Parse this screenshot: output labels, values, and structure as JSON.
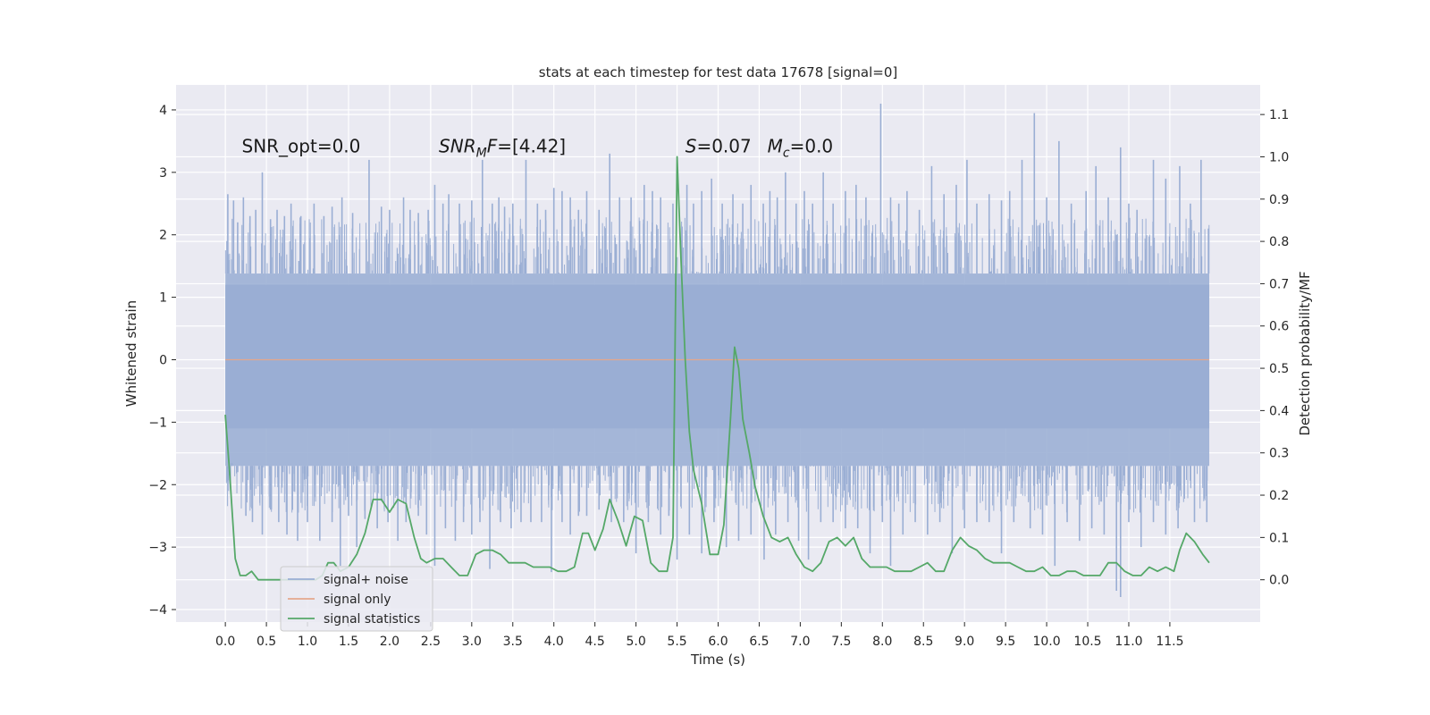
{
  "chart_data": {
    "type": "line",
    "title": "stats at each timestep for test data 17678 [signal=0]",
    "xlabel": "Time (s)",
    "ylabel": "Whitened strain",
    "y2label": "Detection probability/MF",
    "xlim": [
      -0.6,
      12.6
    ],
    "ylim": [
      -4.2,
      4.4
    ],
    "y2lim": [
      -0.1,
      1.17
    ],
    "xticks": [
      0.0,
      0.5,
      1.0,
      1.5,
      2.0,
      2.5,
      3.0,
      3.5,
      4.0,
      4.5,
      5.0,
      5.5,
      6.0,
      6.5,
      7.0,
      7.5,
      8.0,
      8.5,
      9.0,
      9.5,
      10.0,
      10.5,
      11.0,
      11.5
    ],
    "xtick_labels": [
      "0.0",
      "0.5",
      "1.0",
      "1.5",
      "2.0",
      "2.5",
      "3.0",
      "3.5",
      "4.0",
      "4.5",
      "5.0",
      "5.5",
      "6.0",
      "6.5",
      "7.0",
      "7.5",
      "8.0",
      "8.5",
      "9.0",
      "9.5",
      "10.0",
      "10.5",
      "11.0",
      "11.5"
    ],
    "yticks": [
      -4,
      -3,
      -2,
      -1,
      0,
      1,
      2,
      3,
      4
    ],
    "ytick_labels": [
      "−4",
      "−3",
      "−2",
      "−1",
      "0",
      "1",
      "2",
      "3",
      "4"
    ],
    "y2ticks": [
      0.0,
      0.1,
      0.2,
      0.3,
      0.4,
      0.5,
      0.6,
      0.7,
      0.8,
      0.9,
      1.0,
      1.1
    ],
    "y2tick_labels": [
      "0.0",
      "0.1",
      "0.2",
      "0.3",
      "0.4",
      "0.5",
      "0.6",
      "0.7",
      "0.8",
      "0.9",
      "1.0",
      "1.1"
    ],
    "grid": true,
    "legend_position": "lower-left",
    "annotations": [
      {
        "id": "snr-opt",
        "parts": [
          {
            "text": "SNR_opt=0.0",
            "style": "normal"
          }
        ],
        "x": 0.2,
        "y": 3.32
      },
      {
        "id": "snr-mf",
        "parts": [
          {
            "text": "SNR",
            "style": "italic"
          },
          {
            "text": "M",
            "style": "italic-sub"
          },
          {
            "text": "F",
            "style": "italic"
          },
          {
            "text": "=[4.42]",
            "style": "normal"
          }
        ],
        "x": 2.6,
        "y": 3.32
      },
      {
        "id": "s-stat",
        "parts": [
          {
            "text": "S",
            "style": "italic"
          },
          {
            "text": "=0.07",
            "style": "normal"
          }
        ],
        "x": 5.6,
        "y": 3.32
      },
      {
        "id": "mc",
        "parts": [
          {
            "text": "M",
            "style": "italic"
          },
          {
            "text": "c",
            "style": "italic-sub"
          },
          {
            "text": "=0.0",
            "style": "normal"
          }
        ],
        "x": 6.6,
        "y": 3.32
      }
    ],
    "series": [
      {
        "name": "signal+ noise",
        "axis": "left",
        "color": "#9aaed4",
        "x_range": [
          0.0,
          11.98
        ],
        "band_typical": [
          -1.7,
          1.38
        ],
        "band_dense": [
          -1.1,
          1.2
        ],
        "spikes": [
          [
            0.02,
            1.9
          ],
          [
            0.03,
            2.65
          ],
          [
            0.1,
            2.55
          ],
          [
            0.15,
            2.2
          ],
          [
            0.22,
            2.6
          ],
          [
            0.3,
            2.3
          ],
          [
            0.37,
            2.4
          ],
          [
            0.45,
            3.0
          ],
          [
            0.55,
            2.25
          ],
          [
            0.63,
            2.4
          ],
          [
            0.72,
            2.3
          ],
          [
            0.8,
            2.5
          ],
          [
            0.92,
            2.3
          ],
          [
            1.08,
            2.5
          ],
          [
            1.2,
            2.3
          ],
          [
            1.3,
            2.45
          ],
          [
            1.42,
            2.6
          ],
          [
            1.55,
            2.35
          ],
          [
            1.75,
            3.2
          ],
          [
            1.9,
            2.45
          ],
          [
            2.0,
            2.4
          ],
          [
            2.17,
            2.6
          ],
          [
            2.25,
            2.4
          ],
          [
            2.35,
            2.35
          ],
          [
            2.47,
            2.4
          ],
          [
            2.55,
            2.8
          ],
          [
            2.65,
            2.5
          ],
          [
            2.72,
            2.65
          ],
          [
            2.85,
            2.5
          ],
          [
            3.0,
            2.55
          ],
          [
            3.13,
            3.2
          ],
          [
            3.25,
            2.5
          ],
          [
            3.33,
            2.6
          ],
          [
            3.4,
            2.45
          ],
          [
            3.5,
            2.5
          ],
          [
            3.66,
            3.2
          ],
          [
            3.8,
            2.5
          ],
          [
            3.9,
            2.4
          ],
          [
            4.0,
            2.75
          ],
          [
            4.1,
            2.7
          ],
          [
            4.2,
            2.6
          ],
          [
            4.3,
            2.4
          ],
          [
            4.4,
            2.7
          ],
          [
            4.55,
            2.4
          ],
          [
            4.68,
            3.3
          ],
          [
            4.8,
            2.6
          ],
          [
            4.94,
            2.6
          ],
          [
            5.1,
            2.8
          ],
          [
            5.2,
            2.7
          ],
          [
            5.3,
            2.6
          ],
          [
            5.45,
            2.5
          ],
          [
            5.62,
            2.8
          ],
          [
            5.7,
            2.5
          ],
          [
            5.8,
            2.7
          ],
          [
            5.92,
            2.9
          ],
          [
            6.05,
            2.5
          ],
          [
            6.18,
            2.65
          ],
          [
            6.3,
            2.5
          ],
          [
            6.4,
            2.8
          ],
          [
            6.55,
            2.5
          ],
          [
            6.63,
            2.7
          ],
          [
            6.72,
            2.6
          ],
          [
            6.82,
            3.0
          ],
          [
            6.95,
            2.5
          ],
          [
            7.05,
            2.7
          ],
          [
            7.15,
            2.5
          ],
          [
            7.28,
            3.0
          ],
          [
            7.4,
            2.5
          ],
          [
            7.55,
            2.7
          ],
          [
            7.68,
            2.8
          ],
          [
            7.8,
            2.6
          ],
          [
            7.98,
            4.1
          ],
          [
            8.1,
            2.6
          ],
          [
            8.2,
            2.5
          ],
          [
            8.3,
            2.7
          ],
          [
            8.45,
            2.4
          ],
          [
            8.6,
            3.1
          ],
          [
            8.75,
            2.65
          ],
          [
            8.9,
            2.8
          ],
          [
            9.03,
            3.2
          ],
          [
            9.15,
            2.5
          ],
          [
            9.3,
            2.65
          ],
          [
            9.45,
            2.55
          ],
          [
            9.55,
            2.7
          ],
          [
            9.7,
            3.2
          ],
          [
            9.85,
            3.95
          ],
          [
            10.0,
            2.6
          ],
          [
            10.15,
            3.5
          ],
          [
            10.3,
            2.5
          ],
          [
            10.48,
            2.7
          ],
          [
            10.6,
            3.1
          ],
          [
            10.75,
            2.6
          ],
          [
            10.9,
            3.4
          ],
          [
            11.0,
            2.5
          ],
          [
            11.1,
            2.4
          ],
          [
            11.3,
            3.2
          ],
          [
            11.45,
            2.9
          ],
          [
            11.62,
            3.1
          ],
          [
            11.75,
            2.5
          ],
          [
            11.88,
            3.2
          ],
          [
            11.97,
            2.1
          ],
          [
            0.05,
            -1.85
          ],
          [
            0.08,
            -1.65
          ],
          [
            0.15,
            -1.8
          ],
          [
            0.25,
            -2.5
          ],
          [
            0.33,
            -2.6
          ],
          [
            0.45,
            -2.8
          ],
          [
            0.55,
            -2.4
          ],
          [
            0.65,
            -2.6
          ],
          [
            0.75,
            -2.8
          ],
          [
            0.88,
            -2.9
          ],
          [
            1.0,
            -2.6
          ],
          [
            1.15,
            -2.9
          ],
          [
            1.3,
            -2.6
          ],
          [
            1.4,
            -3.3
          ],
          [
            1.5,
            -2.5
          ],
          [
            1.6,
            -3.0
          ],
          [
            1.7,
            -2.55
          ],
          [
            1.85,
            -2.7
          ],
          [
            1.98,
            -2.6
          ],
          [
            2.1,
            -2.9
          ],
          [
            2.2,
            -2.6
          ],
          [
            2.35,
            -2.5
          ],
          [
            2.45,
            -2.8
          ],
          [
            2.55,
            -3.3
          ],
          [
            2.68,
            -2.7
          ],
          [
            2.8,
            -2.9
          ],
          [
            2.9,
            -2.6
          ],
          [
            3.0,
            -2.8
          ],
          [
            3.1,
            -2.6
          ],
          [
            3.22,
            -3.35
          ],
          [
            3.35,
            -2.6
          ],
          [
            3.48,
            -2.7
          ],
          [
            3.6,
            -2.6
          ],
          [
            3.72,
            -2.6
          ],
          [
            3.85,
            -2.6
          ],
          [
            3.97,
            -3.4
          ],
          [
            4.1,
            -2.6
          ],
          [
            4.2,
            -2.8
          ],
          [
            4.3,
            -2.5
          ],
          [
            4.4,
            -2.5
          ],
          [
            4.55,
            -2.4
          ],
          [
            4.7,
            -2.6
          ],
          [
            4.85,
            -2.6
          ],
          [
            5.0,
            -3.1
          ],
          [
            5.15,
            -2.6
          ],
          [
            5.3,
            -2.8
          ],
          [
            5.4,
            -2.5
          ],
          [
            5.5,
            -3.2
          ],
          [
            5.65,
            -2.8
          ],
          [
            5.8,
            -3.1
          ],
          [
            5.95,
            -2.6
          ],
          [
            6.1,
            -3.0
          ],
          [
            6.25,
            -2.9
          ],
          [
            6.4,
            -2.8
          ],
          [
            6.56,
            -3.2
          ],
          [
            6.7,
            -2.8
          ],
          [
            6.85,
            -2.6
          ],
          [
            6.98,
            -2.9
          ],
          [
            7.1,
            -3.2
          ],
          [
            7.25,
            -2.6
          ],
          [
            7.4,
            -2.6
          ],
          [
            7.55,
            -2.7
          ],
          [
            7.7,
            -2.7
          ],
          [
            7.85,
            -3.1
          ],
          [
            8.0,
            -2.6
          ],
          [
            8.1,
            -3.3
          ],
          [
            8.25,
            -2.8
          ],
          [
            8.4,
            -2.6
          ],
          [
            8.55,
            -2.8
          ],
          [
            8.7,
            -2.6
          ],
          [
            8.85,
            -3.1
          ],
          [
            9.0,
            -2.7
          ],
          [
            9.15,
            -2.6
          ],
          [
            9.3,
            -2.6
          ],
          [
            9.45,
            -3.1
          ],
          [
            9.6,
            -2.6
          ],
          [
            9.8,
            -2.7
          ],
          [
            9.95,
            -2.8
          ],
          [
            10.1,
            -3.3
          ],
          [
            10.25,
            -2.6
          ],
          [
            10.4,
            -2.9
          ],
          [
            10.55,
            -2.7
          ],
          [
            10.7,
            -2.8
          ],
          [
            10.85,
            -3.7
          ],
          [
            10.9,
            -3.8
          ],
          [
            11.0,
            -2.6
          ],
          [
            11.15,
            -3.0
          ],
          [
            11.3,
            -2.6
          ],
          [
            11.45,
            -2.8
          ],
          [
            11.6,
            -2.7
          ],
          [
            11.8,
            -2.6
          ],
          [
            11.95,
            -2.6
          ]
        ]
      },
      {
        "name": "signal only",
        "axis": "left",
        "color": "#e4a78c",
        "x": [
          0.0,
          11.98
        ],
        "y": [
          0.0,
          0.0
        ]
      },
      {
        "name": "signal statistics",
        "axis": "right",
        "color": "#55a868",
        "x": [
          0.0,
          0.05,
          0.12,
          0.18,
          0.25,
          0.32,
          0.4,
          0.5,
          0.6,
          0.7,
          0.8,
          0.9,
          1.0,
          1.1,
          1.18,
          1.25,
          1.32,
          1.4,
          1.5,
          1.6,
          1.7,
          1.8,
          1.9,
          2.0,
          2.1,
          2.2,
          2.3,
          2.38,
          2.45,
          2.55,
          2.65,
          2.75,
          2.85,
          2.95,
          3.05,
          3.15,
          3.25,
          3.35,
          3.45,
          3.55,
          3.65,
          3.75,
          3.85,
          3.95,
          4.05,
          4.15,
          4.25,
          4.35,
          4.42,
          4.5,
          4.6,
          4.68,
          4.78,
          4.88,
          4.98,
          5.08,
          5.18,
          5.28,
          5.38,
          5.45,
          5.5,
          5.55,
          5.6,
          5.65,
          5.7,
          5.8,
          5.9,
          6.0,
          6.07,
          6.15,
          6.2,
          6.25,
          6.3,
          6.38,
          6.45,
          6.55,
          6.65,
          6.75,
          6.85,
          6.95,
          7.05,
          7.15,
          7.25,
          7.35,
          7.45,
          7.55,
          7.65,
          7.75,
          7.85,
          7.95,
          8.05,
          8.15,
          8.25,
          8.35,
          8.45,
          8.55,
          8.65,
          8.75,
          8.85,
          8.95,
          9.05,
          9.15,
          9.25,
          9.35,
          9.45,
          9.55,
          9.65,
          9.75,
          9.85,
          9.95,
          10.05,
          10.15,
          10.25,
          10.35,
          10.45,
          10.55,
          10.65,
          10.75,
          10.85,
          10.95,
          11.05,
          11.15,
          11.25,
          11.35,
          11.45,
          11.55,
          11.62,
          11.7,
          11.8,
          11.9,
          11.98
        ],
        "y": [
          0.39,
          0.26,
          0.05,
          0.01,
          0.01,
          0.02,
          0.0,
          0.0,
          0.0,
          0.0,
          0.0,
          0.0,
          0.0,
          0.0,
          0.01,
          0.04,
          0.04,
          0.02,
          0.03,
          0.06,
          0.11,
          0.19,
          0.19,
          0.16,
          0.19,
          0.18,
          0.1,
          0.05,
          0.04,
          0.05,
          0.05,
          0.03,
          0.01,
          0.01,
          0.06,
          0.07,
          0.07,
          0.06,
          0.04,
          0.04,
          0.04,
          0.03,
          0.03,
          0.03,
          0.02,
          0.02,
          0.03,
          0.11,
          0.11,
          0.07,
          0.12,
          0.19,
          0.14,
          0.08,
          0.15,
          0.14,
          0.04,
          0.02,
          0.02,
          0.1,
          1.0,
          0.75,
          0.52,
          0.35,
          0.26,
          0.18,
          0.06,
          0.06,
          0.13,
          0.38,
          0.55,
          0.5,
          0.38,
          0.3,
          0.22,
          0.15,
          0.1,
          0.09,
          0.1,
          0.06,
          0.03,
          0.02,
          0.04,
          0.09,
          0.1,
          0.08,
          0.1,
          0.05,
          0.03,
          0.03,
          0.03,
          0.02,
          0.02,
          0.02,
          0.03,
          0.04,
          0.02,
          0.02,
          0.07,
          0.1,
          0.08,
          0.07,
          0.05,
          0.04,
          0.04,
          0.04,
          0.03,
          0.02,
          0.02,
          0.03,
          0.01,
          0.01,
          0.02,
          0.02,
          0.01,
          0.01,
          0.01,
          0.04,
          0.04,
          0.02,
          0.01,
          0.01,
          0.03,
          0.02,
          0.03,
          0.02,
          0.07,
          0.11,
          0.09,
          0.06,
          0.04
        ]
      }
    ]
  }
}
